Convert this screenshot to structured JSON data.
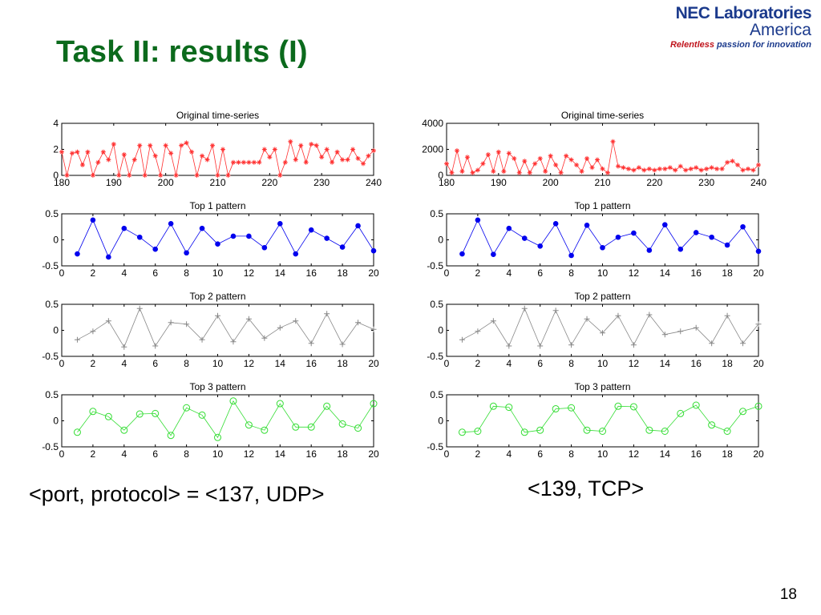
{
  "slide": {
    "title": "Task II: results (I)",
    "logo": {
      "line1": "NEC Laboratories",
      "line2": "America",
      "tagline_em": "Relentless",
      "tagline_rest": "passion for innovation"
    },
    "caption_left": "<port, protocol> = <137, UDP>",
    "caption_right": "<139, TCP>",
    "page_number": "18"
  },
  "colors": {
    "title": "#0b6a1c",
    "series_original": "#ff3030",
    "series_top1": "#0000ee",
    "series_top2": "#888888",
    "series_top3": "#33dd33"
  },
  "chart_data": [
    {
      "id": "left-original",
      "type": "line",
      "title": "Original time-series",
      "marker": "star",
      "color": "#ff3030",
      "xlim": [
        180,
        240
      ],
      "ylim": [
        0,
        4
      ],
      "xticks": [
        180,
        190,
        200,
        210,
        220,
        230,
        240
      ],
      "yticks": [
        0,
        2,
        4
      ],
      "x": [
        180,
        181,
        182,
        183,
        184,
        185,
        186,
        187,
        188,
        189,
        190,
        191,
        192,
        193,
        194,
        195,
        196,
        197,
        198,
        199,
        200,
        201,
        202,
        203,
        204,
        205,
        206,
        207,
        208,
        209,
        210,
        211,
        212,
        213,
        214,
        215,
        216,
        217,
        218,
        219,
        220,
        221,
        222,
        223,
        224,
        225,
        226,
        227,
        228,
        229,
        230,
        231,
        232,
        233,
        234,
        235,
        236,
        237,
        238,
        239,
        240
      ],
      "y": [
        1.8,
        0,
        1.7,
        1.8,
        0.8,
        1.8,
        0,
        1,
        1.8,
        1.2,
        2.4,
        0,
        1.6,
        0,
        1.2,
        2.3,
        0,
        2.3,
        1.5,
        0,
        2.3,
        1.7,
        0,
        2.3,
        2.5,
        1.8,
        0,
        1.5,
        1.2,
        2.3,
        0,
        2,
        0,
        1,
        1,
        1,
        1,
        1,
        1,
        2,
        1.4,
        2,
        0,
        1,
        2.6,
        1.2,
        2.3,
        1,
        2.4,
        2.3,
        1.4,
        2,
        1,
        1.8,
        1.2,
        1.2,
        2,
        1.3,
        0.9,
        1.5,
        1.9
      ]
    },
    {
      "id": "left-top1",
      "type": "line",
      "title": "Top 1 pattern",
      "marker": "dot",
      "color": "#0000ee",
      "xlim": [
        0,
        20
      ],
      "ylim": [
        -0.5,
        0.5
      ],
      "xticks": [
        0,
        2,
        4,
        6,
        8,
        10,
        12,
        14,
        16,
        18,
        20
      ],
      "yticks": [
        -0.5,
        0,
        0.5
      ],
      "x": [
        1,
        2,
        3,
        4,
        5,
        6,
        7,
        8,
        9,
        10,
        11,
        12,
        13,
        14,
        15,
        16,
        17,
        18,
        19,
        20
      ],
      "y": [
        -0.27,
        0.38,
        -0.33,
        0.22,
        0.05,
        -0.18,
        0.31,
        -0.25,
        0.22,
        -0.08,
        0.07,
        0.07,
        -0.15,
        0.31,
        -0.27,
        0.19,
        0.03,
        -0.14,
        0.27,
        -0.21
      ]
    },
    {
      "id": "left-top2",
      "type": "line",
      "title": "Top 2 pattern",
      "marker": "plus",
      "color": "#888888",
      "xlim": [
        0,
        20
      ],
      "ylim": [
        -0.5,
        0.5
      ],
      "xticks": [
        0,
        2,
        4,
        6,
        8,
        10,
        12,
        14,
        16,
        18,
        20
      ],
      "yticks": [
        -0.5,
        0,
        0.5
      ],
      "x": [
        1,
        2,
        3,
        4,
        5,
        6,
        7,
        8,
        9,
        10,
        11,
        12,
        13,
        14,
        15,
        16,
        17,
        18,
        19,
        20
      ],
      "y": [
        -0.18,
        -0.02,
        0.18,
        -0.32,
        0.42,
        -0.3,
        0.15,
        0.12,
        -0.18,
        0.28,
        -0.22,
        0.22,
        -0.15,
        0.05,
        0.18,
        -0.25,
        0.32,
        -0.27,
        0.15,
        0.02
      ]
    },
    {
      "id": "left-top3",
      "type": "line",
      "title": "Top 3 pattern",
      "marker": "circle",
      "color": "#33dd33",
      "xlim": [
        0,
        20
      ],
      "ylim": [
        -0.5,
        0.5
      ],
      "xticks": [
        0,
        2,
        4,
        6,
        8,
        10,
        12,
        14,
        16,
        18,
        20
      ],
      "yticks": [
        -0.5,
        0,
        0.5
      ],
      "x": [
        1,
        2,
        3,
        4,
        5,
        6,
        7,
        8,
        9,
        10,
        11,
        12,
        13,
        14,
        15,
        16,
        17,
        18,
        19,
        20
      ],
      "y": [
        -0.22,
        0.18,
        0.08,
        -0.18,
        0.13,
        0.14,
        -0.28,
        0.25,
        0.11,
        -0.32,
        0.38,
        -0.08,
        -0.18,
        0.33,
        -0.12,
        -0.12,
        0.28,
        -0.06,
        -0.14,
        0.33
      ]
    },
    {
      "id": "right-original",
      "type": "line",
      "title": "Original time-series",
      "marker": "star",
      "color": "#ff3030",
      "xlim": [
        180,
        240
      ],
      "ylim": [
        0,
        4000
      ],
      "xticks": [
        180,
        190,
        200,
        210,
        220,
        230,
        240
      ],
      "yticks": [
        0,
        2000,
        4000
      ],
      "x": [
        180,
        181,
        182,
        183,
        184,
        185,
        186,
        187,
        188,
        189,
        190,
        191,
        192,
        193,
        194,
        195,
        196,
        197,
        198,
        199,
        200,
        201,
        202,
        203,
        204,
        205,
        206,
        207,
        208,
        209,
        210,
        211,
        212,
        213,
        214,
        215,
        216,
        217,
        218,
        219,
        220,
        221,
        222,
        223,
        224,
        225,
        226,
        227,
        228,
        229,
        230,
        231,
        232,
        233,
        234,
        235,
        236,
        237,
        238,
        239,
        240
      ],
      "y": [
        900,
        200,
        1900,
        300,
        1400,
        200,
        400,
        900,
        1600,
        300,
        1800,
        300,
        1700,
        1300,
        200,
        1100,
        200,
        900,
        1300,
        300,
        1500,
        800,
        200,
        1500,
        1200,
        800,
        300,
        1300,
        600,
        1200,
        500,
        200,
        2600,
        700,
        600,
        500,
        400,
        600,
        400,
        500,
        400,
        500,
        500,
        600,
        400,
        700,
        400,
        500,
        600,
        400,
        500,
        600,
        500,
        500,
        1000,
        1100,
        800,
        400,
        500,
        400,
        800
      ]
    },
    {
      "id": "right-top1",
      "type": "line",
      "title": "Top 1 pattern",
      "marker": "dot",
      "color": "#0000ee",
      "xlim": [
        0,
        20
      ],
      "ylim": [
        -0.5,
        0.5
      ],
      "xticks": [
        0,
        2,
        4,
        6,
        8,
        10,
        12,
        14,
        16,
        18,
        20
      ],
      "yticks": [
        -0.5,
        0,
        0.5
      ],
      "x": [
        1,
        2,
        3,
        4,
        5,
        6,
        7,
        8,
        9,
        10,
        11,
        12,
        13,
        14,
        15,
        16,
        17,
        18,
        19,
        20
      ],
      "y": [
        -0.27,
        0.38,
        -0.28,
        0.22,
        0.03,
        -0.12,
        0.31,
        -0.3,
        0.28,
        -0.15,
        0.05,
        0.13,
        -0.2,
        0.29,
        -0.18,
        0.14,
        0.05,
        -0.1,
        0.25,
        -0.22
      ]
    },
    {
      "id": "right-top2",
      "type": "line",
      "title": "Top 2 pattern",
      "marker": "plus",
      "color": "#888888",
      "xlim": [
        0,
        20
      ],
      "ylim": [
        -0.5,
        0.5
      ],
      "xticks": [
        0,
        2,
        4,
        6,
        8,
        10,
        12,
        14,
        16,
        18,
        20
      ],
      "yticks": [
        -0.5,
        0,
        0.5
      ],
      "x": [
        1,
        2,
        3,
        4,
        5,
        6,
        7,
        8,
        9,
        10,
        11,
        12,
        13,
        14,
        15,
        16,
        17,
        18,
        19,
        20
      ],
      "y": [
        -0.18,
        -0.02,
        0.18,
        -0.3,
        0.42,
        -0.3,
        0.38,
        -0.28,
        0.22,
        -0.05,
        0.28,
        -0.28,
        0.3,
        -0.08,
        -0.02,
        0.05,
        -0.25,
        0.28,
        -0.25,
        0.12
      ]
    },
    {
      "id": "right-top3",
      "type": "line",
      "title": "Top 3 pattern",
      "marker": "circle",
      "color": "#33dd33",
      "xlim": [
        0,
        20
      ],
      "ylim": [
        -0.5,
        0.5
      ],
      "xticks": [
        0,
        2,
        4,
        6,
        8,
        10,
        12,
        14,
        16,
        18,
        20
      ],
      "yticks": [
        -0.5,
        0,
        0.5
      ],
      "x": [
        1,
        2,
        3,
        4,
        5,
        6,
        7,
        8,
        9,
        10,
        11,
        12,
        13,
        14,
        15,
        16,
        17,
        18,
        19,
        20
      ],
      "y": [
        -0.22,
        -0.2,
        0.28,
        0.26,
        -0.22,
        -0.18,
        0.23,
        0.25,
        -0.18,
        -0.2,
        0.28,
        0.27,
        -0.18,
        -0.2,
        0.14,
        0.3,
        -0.08,
        -0.2,
        0.18,
        0.28
      ]
    }
  ]
}
